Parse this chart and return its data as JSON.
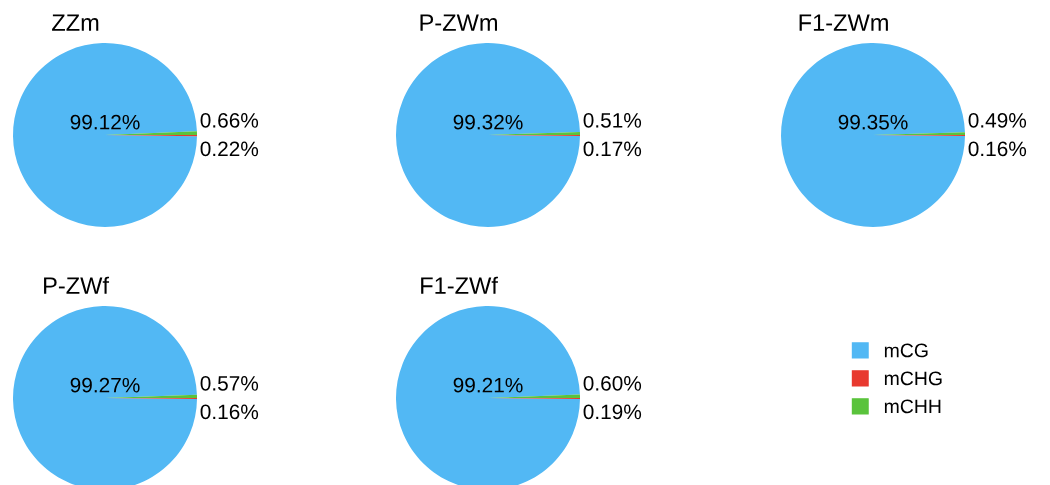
{
  "chart_data": [
    {
      "type": "pie",
      "title": "ZZm",
      "categories": [
        "mCG",
        "mCHG",
        "mCHH"
      ],
      "values": [
        99.12,
        0.22,
        0.66
      ],
      "colors": [
        "#52b8f4",
        "#e8392f",
        "#5ac33c"
      ],
      "value_labels": [
        "99.12%",
        "0.22%",
        "0.66%"
      ],
      "legend": "bottom right"
    },
    {
      "type": "pie",
      "title": "P-ZWm",
      "values": [
        99.32,
        0.17,
        0.51
      ],
      "colors": [
        "#52b8f4",
        "#e8392f",
        "#5ac33c"
      ],
      "value_labels": [
        "99.32%",
        "0.17%",
        "0.51%"
      ]
    },
    {
      "type": "pie",
      "title": "F1-ZWm",
      "values": [
        99.35,
        0.16,
        0.49
      ],
      "colors": [
        "#52b8f4",
        "#e8392f",
        "#5ac33c"
      ],
      "value_labels": [
        "99.35%",
        "0.16%",
        "0.49%"
      ]
    },
    {
      "type": "pie",
      "title": "P-ZWf",
      "values": [
        99.27,
        0.16,
        0.57
      ],
      "colors": [
        "#52b8f4",
        "#e8392f",
        "#5ac33c"
      ],
      "value_labels": [
        "99.27%",
        "0.16%",
        "0.57%"
      ]
    },
    {
      "type": "pie",
      "title": "F1-ZWf",
      "values": [
        99.21,
        0.19,
        0.6
      ],
      "colors": [
        "#52b8f4",
        "#e8392f",
        "#5ac33c"
      ],
      "value_labels": [
        "99.21%",
        "0.19%",
        "0.60%"
      ]
    }
  ]
}
